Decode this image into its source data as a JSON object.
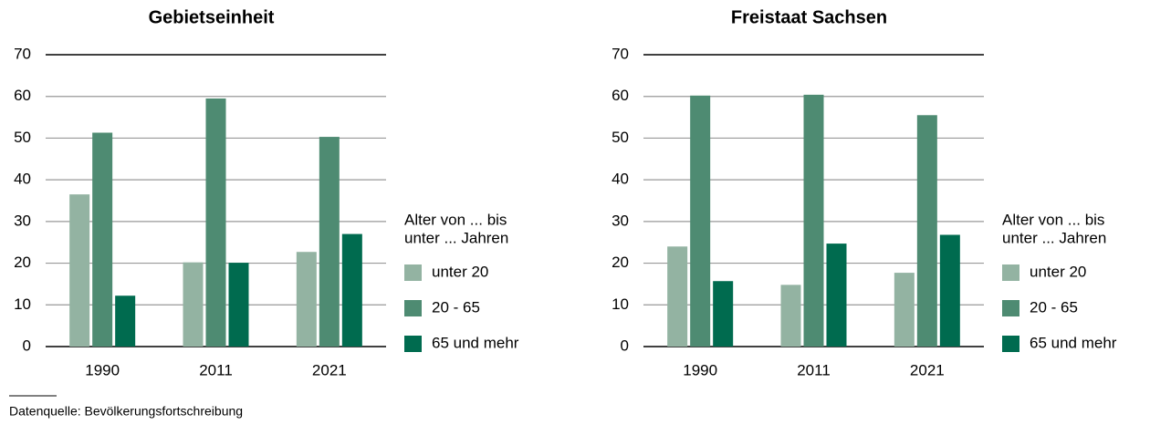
{
  "chart_data": [
    {
      "type": "bar",
      "title": "Gebietseinheit",
      "categories": [
        "1990",
        "2011",
        "2021"
      ],
      "legend_title": [
        "Alter von ... bis",
        "unter ... Jahren"
      ],
      "series": [
        {
          "name": "unter 20",
          "color": "#93b3a2",
          "values": [
            36.5,
            20.2,
            22.7
          ]
        },
        {
          "name": "20 - 65",
          "color": "#4e8b72",
          "values": [
            51.3,
            59.5,
            50.3
          ]
        },
        {
          "name": "65 und mehr",
          "color": "#006b4f",
          "values": [
            12.2,
            20.1,
            27.0
          ]
        }
      ],
      "ylim": [
        0,
        70
      ],
      "yticks": [
        0,
        10,
        20,
        30,
        40,
        50,
        60,
        70
      ],
      "grid": true,
      "legend": "right"
    },
    {
      "type": "bar",
      "title": "Freistaat Sachsen",
      "categories": [
        "1990",
        "2011",
        "2021"
      ],
      "legend_title": [
        "Alter von ... bis",
        "unter ... Jahren"
      ],
      "series": [
        {
          "name": "unter 20",
          "color": "#93b3a2",
          "values": [
            24.0,
            14.8,
            17.7
          ]
        },
        {
          "name": "20 - 65",
          "color": "#4e8b72",
          "values": [
            60.2,
            60.4,
            55.5
          ]
        },
        {
          "name": "65 und mehr",
          "color": "#006b4f",
          "values": [
            15.7,
            24.7,
            26.8
          ]
        }
      ],
      "ylim": [
        0,
        70
      ],
      "yticks": [
        0,
        10,
        20,
        30,
        40,
        50,
        60,
        70
      ],
      "grid": true,
      "legend": "right"
    }
  ],
  "source": "Datenquelle: Bevölkerungsfortschreibung"
}
